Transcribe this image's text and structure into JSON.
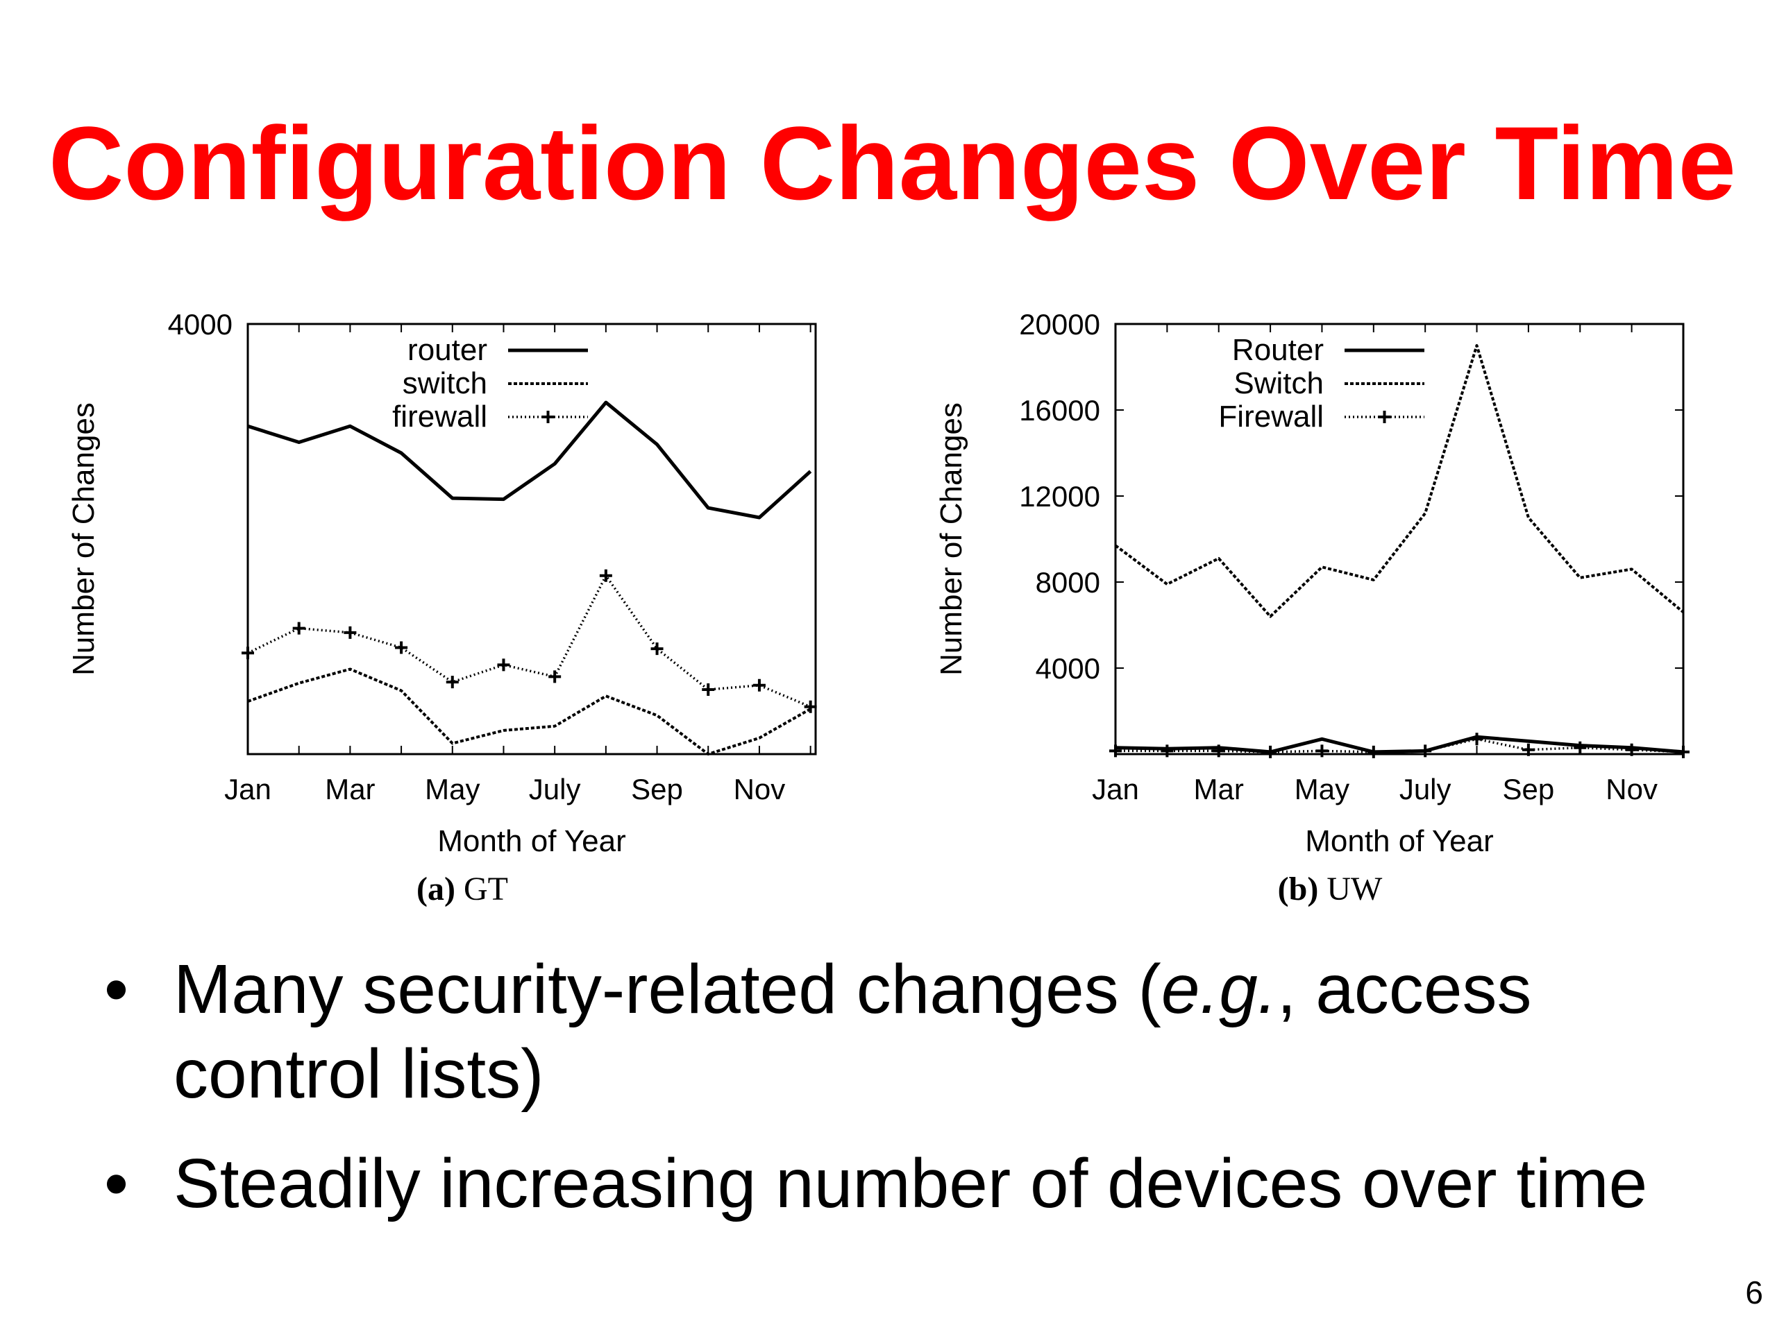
{
  "title": "Configuration Changes Over Time",
  "accent_color": "#ff0000",
  "chart_data": [
    {
      "type": "line",
      "caption": "(a) GT",
      "caption_bold": "(a)",
      "caption_rest": "GT",
      "xlabel": "Month of Year",
      "ylabel": "Number of Changes",
      "x": [
        1,
        2,
        3,
        4,
        5,
        6,
        7,
        8,
        9,
        10,
        11,
        12
      ],
      "xticks": [
        1,
        3,
        5,
        7,
        9,
        11
      ],
      "xtick_labels": [
        "Jan",
        "Mar",
        "May",
        "July",
        "Sep",
        "Nov"
      ],
      "xlim": [
        1,
        12.1
      ],
      "ylim": [
        0,
        4000
      ],
      "yticks": [
        4000
      ],
      "ytick_labels": [
        "4000"
      ],
      "legend_position": "top",
      "series": [
        {
          "name": "router",
          "style": "solid",
          "values": [
            3050,
            2900,
            3050,
            2800,
            2380,
            2370,
            2700,
            3270,
            2880,
            2290,
            2200,
            2630
          ]
        },
        {
          "name": "switch",
          "style": "dashed",
          "values": [
            490,
            660,
            790,
            590,
            100,
            220,
            260,
            540,
            360,
            0,
            150,
            420
          ]
        },
        {
          "name": "firewall",
          "style": "dotted-marker",
          "values": [
            940,
            1170,
            1130,
            990,
            670,
            830,
            720,
            1660,
            980,
            600,
            640,
            440
          ]
        }
      ]
    },
    {
      "type": "line",
      "caption": "(b) UW",
      "caption_bold": "(b)",
      "caption_rest": "UW",
      "xlabel": "Month of Year",
      "ylabel": "Number of Changes",
      "x": [
        1,
        2,
        3,
        4,
        5,
        6,
        7,
        8,
        9,
        10,
        11,
        12
      ],
      "xticks": [
        1,
        3,
        5,
        7,
        9,
        11
      ],
      "xtick_labels": [
        "Jan",
        "Mar",
        "May",
        "July",
        "Sep",
        "Nov"
      ],
      "xlim": [
        1,
        12
      ],
      "ylim": [
        0,
        20000
      ],
      "yticks": [
        4000,
        8000,
        12000,
        16000,
        20000
      ],
      "ytick_labels": [
        "4000",
        "8000",
        "12000",
        "16000",
        "20000"
      ],
      "legend_position": "top",
      "series": [
        {
          "name": "Router",
          "style": "solid",
          "values": [
            300,
            250,
            300,
            100,
            700,
            100,
            150,
            800,
            600,
            400,
            300,
            100
          ]
        },
        {
          "name": "Switch",
          "style": "dashed",
          "values": [
            9700,
            7900,
            9100,
            6400,
            8700,
            8100,
            11200,
            19000,
            11000,
            8200,
            8600,
            6600
          ]
        },
        {
          "name": "Firewall",
          "style": "dotted-marker",
          "values": [
            150,
            150,
            150,
            100,
            150,
            100,
            150,
            700,
            200,
            300,
            200,
            100
          ]
        }
      ]
    }
  ],
  "bullets": [
    {
      "parts": [
        "Many security-related changes (",
        "e.g.",
        ", access control lists)"
      ]
    },
    {
      "parts": [
        "Steadily increasing number of devices over time"
      ]
    }
  ],
  "bullet_symbol": "•",
  "page_number": "6"
}
